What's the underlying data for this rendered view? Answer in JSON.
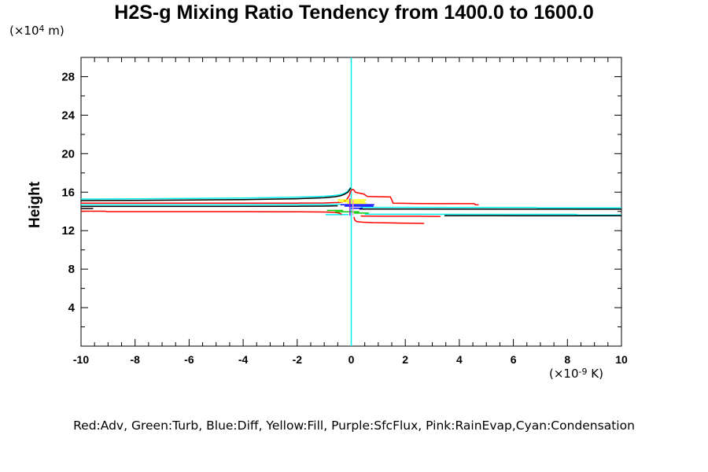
{
  "title": "H2S-g Mixing Ratio Tendency from 1400.0 to 1600.0",
  "y_axis_title": "Height",
  "y_unit": {
    "prefix": "(×10",
    "sup": "4",
    "suffix": " m)"
  },
  "x_unit": {
    "prefix": "(×10",
    "sup": "-9",
    "suffix": " K)"
  },
  "legend_caption": "Red:Adv, Green:Turb, Blue:Diff, Yellow:Fill, Purple:SfcFlux, Pink:RainEvap,Cyan:Condensation",
  "colors": {
    "adv": "#ff0000",
    "turb": "#00cc00",
    "diff": "#0000ff",
    "fill": "#ffff00",
    "sfcflux": "#a020f0",
    "rainevap": "#ff9ec8",
    "condensation": "#00eeee",
    "frame": "#000000"
  },
  "chart_data": {
    "type": "line",
    "title": "H2S-g Mixing Ratio Tendency from 1400.0 to 1600.0",
    "xlabel": "(x10^-9 K)",
    "ylabel": "Height (x10^4 m)",
    "xlim": [
      -10,
      10
    ],
    "ylim": [
      0,
      30
    ],
    "grid": false,
    "x_major_ticks": [
      -10,
      -8,
      -6,
      -4,
      -2,
      0,
      2,
      4,
      6,
      8,
      10
    ],
    "x_minor_step": 0.5,
    "y_major_ticks": [
      4,
      8,
      12,
      16,
      20,
      24,
      28
    ],
    "y_minor_step": 2,
    "legend_position": "bottom-caption",
    "series": [
      {
        "name": "condensation-zero-vertical",
        "color": "#00eeee",
        "points": [
          [
            0,
            0
          ],
          [
            0,
            30
          ]
        ]
      },
      {
        "name": "condensation-upper",
        "color": "#00eeee",
        "points": [
          [
            -10,
            15.28
          ],
          [
            -8,
            15.3
          ],
          [
            -6,
            15.34
          ],
          [
            -4,
            15.39
          ],
          [
            -3,
            15.43
          ],
          [
            -2,
            15.48
          ],
          [
            -1.5,
            15.52
          ],
          [
            -1,
            15.57
          ],
          [
            -0.7,
            15.63
          ],
          [
            -0.45,
            15.72
          ],
          [
            -0.28,
            15.85
          ],
          [
            -0.15,
            16.05
          ],
          [
            -0.07,
            16.3
          ],
          [
            -0.03,
            16.5
          ]
        ]
      },
      {
        "name": "condensation-mid-left",
        "color": "#00eeee",
        "points": [
          [
            -10,
            14.68
          ],
          [
            -5,
            14.68
          ],
          [
            -2,
            14.69
          ],
          [
            -1,
            14.71
          ],
          [
            -0.6,
            14.73
          ],
          [
            -0.4,
            14.76
          ]
        ]
      },
      {
        "name": "condensation-right-mid",
        "color": "#00eeee",
        "points": [
          [
            0.35,
            14.42
          ],
          [
            2,
            14.42
          ],
          [
            4.5,
            14.41
          ],
          [
            6.8,
            14.41
          ],
          [
            6.9,
            14.36
          ],
          [
            10,
            14.36
          ]
        ]
      },
      {
        "name": "condensation-knot-low-left",
        "color": "#00eeee",
        "points": [
          [
            -0.95,
            13.66
          ],
          [
            -0.4,
            13.66
          ],
          [
            -0.1,
            13.67
          ]
        ]
      },
      {
        "name": "condensation-right-low",
        "color": "#00eeee",
        "points": [
          [
            0.5,
            13.7
          ],
          [
            2,
            13.7
          ],
          [
            5,
            13.69
          ],
          [
            8.3,
            13.69
          ],
          [
            8.4,
            13.63
          ],
          [
            10,
            13.63
          ]
        ]
      },
      {
        "name": "diff-black-upper",
        "color": "#000000",
        "points": [
          [
            -10,
            15.12
          ],
          [
            -8,
            15.15
          ],
          [
            -6,
            15.18
          ],
          [
            -4,
            15.23
          ],
          [
            -2,
            15.32
          ],
          [
            -1,
            15.42
          ],
          [
            -0.6,
            15.52
          ],
          [
            -0.4,
            15.62
          ],
          [
            -0.25,
            15.78
          ],
          [
            -0.12,
            16.0
          ],
          [
            -0.05,
            16.3
          ],
          [
            -0.02,
            16.45
          ]
        ]
      },
      {
        "name": "black-mid-left",
        "color": "#000000",
        "points": [
          [
            -10,
            14.52
          ],
          [
            -5,
            14.52
          ],
          [
            -2,
            14.53
          ],
          [
            -1,
            14.55
          ],
          [
            -0.5,
            14.58
          ]
        ]
      },
      {
        "name": "black-left-edge-short",
        "color": "#000000",
        "points": [
          [
            -10,
            14.3
          ],
          [
            -9.55,
            14.3
          ]
        ]
      },
      {
        "name": "black-right-mid",
        "color": "#000000",
        "points": [
          [
            0.3,
            14.25
          ],
          [
            2,
            14.24
          ],
          [
            6,
            14.23
          ],
          [
            10,
            14.23
          ]
        ]
      },
      {
        "name": "black-right-low",
        "color": "#000000",
        "points": [
          [
            3.45,
            13.56
          ],
          [
            6,
            13.55
          ],
          [
            10,
            13.55
          ]
        ]
      },
      {
        "name": "adv-red-upper-spike",
        "color": "#ff0000",
        "points": [
          [
            -10,
            14.85
          ],
          [
            -5,
            14.85
          ],
          [
            -2,
            14.86
          ],
          [
            -1,
            14.88
          ],
          [
            -0.5,
            14.93
          ],
          [
            -0.3,
            15.0
          ],
          [
            -0.18,
            15.2
          ],
          [
            -0.08,
            15.6
          ],
          [
            -0.02,
            16.1
          ],
          [
            0.03,
            16.28
          ],
          [
            0.09,
            16.25
          ],
          [
            0.15,
            16.0
          ],
          [
            0.3,
            15.9
          ],
          [
            0.45,
            15.82
          ],
          [
            0.6,
            15.55
          ],
          [
            1.45,
            15.5
          ],
          [
            1.5,
            15.2
          ],
          [
            1.55,
            14.85
          ],
          [
            2.5,
            14.82
          ],
          [
            3.5,
            14.8
          ],
          [
            4.55,
            14.8
          ],
          [
            4.6,
            14.7
          ],
          [
            4.72,
            14.68
          ]
        ]
      },
      {
        "name": "adv-red-left-low",
        "color": "#ff0000",
        "points": [
          [
            -10,
            14.02
          ],
          [
            -9.1,
            14.02
          ],
          [
            -9.05,
            13.98
          ],
          [
            -5,
            13.98
          ],
          [
            -2,
            13.96
          ],
          [
            -1,
            13.94
          ],
          [
            -0.6,
            13.9
          ],
          [
            -0.45,
            13.82
          ],
          [
            -0.35,
            13.7
          ]
        ]
      },
      {
        "name": "adv-red-right-low",
        "color": "#ff0000",
        "points": [
          [
            0.35,
            13.52
          ],
          [
            1.2,
            13.5
          ],
          [
            2.4,
            13.5
          ],
          [
            3.3,
            13.48
          ]
        ]
      },
      {
        "name": "adv-red-dip",
        "color": "#ff0000",
        "points": [
          [
            0.1,
            13.42
          ],
          [
            0.13,
            13.1
          ],
          [
            0.2,
            12.95
          ],
          [
            0.4,
            12.88
          ],
          [
            0.8,
            12.83
          ],
          [
            1.5,
            12.8
          ],
          [
            2.2,
            12.77
          ],
          [
            2.7,
            12.75
          ]
        ]
      },
      {
        "name": "fill-yellow-1",
        "color": "#ffff00",
        "points": [
          [
            -0.5,
            15.2
          ],
          [
            0.55,
            15.2
          ]
        ]
      },
      {
        "name": "fill-yellow-2",
        "color": "#ffff00",
        "points": [
          [
            -0.45,
            15.02
          ],
          [
            0.5,
            15.02
          ]
        ]
      },
      {
        "name": "fill-yellow-3",
        "color": "#ffff00",
        "points": [
          [
            -0.15,
            14.87
          ],
          [
            0.55,
            14.87
          ]
        ]
      },
      {
        "name": "diff-blue-1",
        "color": "#0000ff",
        "points": [
          [
            -0.4,
            14.7
          ],
          [
            0.85,
            14.7
          ]
        ]
      },
      {
        "name": "diff-blue-2",
        "color": "#0000ff",
        "points": [
          [
            -0.25,
            14.55
          ],
          [
            0.8,
            14.55
          ],
          [
            0.82,
            14.5
          ]
        ]
      },
      {
        "name": "diff-blue-3",
        "color": "#0000ff",
        "points": [
          [
            0.0,
            14.33
          ],
          [
            0.42,
            14.33
          ]
        ]
      },
      {
        "name": "turb-green-1",
        "color": "#00cc00",
        "points": [
          [
            -0.9,
            14.1
          ],
          [
            -0.3,
            14.1
          ]
        ]
      },
      {
        "name": "turb-green-2",
        "color": "#00cc00",
        "points": [
          [
            -0.6,
            13.95
          ],
          [
            0.3,
            13.95
          ]
        ]
      },
      {
        "name": "turb-green-3",
        "color": "#00cc00",
        "points": [
          [
            0.1,
            13.82
          ],
          [
            0.65,
            13.82
          ]
        ]
      },
      {
        "name": "sfcflux-purple-vertical",
        "color": "#a020f0",
        "points": [
          [
            -0.05,
            13.55
          ],
          [
            -0.05,
            15.35
          ]
        ]
      },
      {
        "name": "rainevap-pink-vertical",
        "color": "#ff9ec8",
        "points": [
          [
            0.06,
            13.6
          ],
          [
            0.06,
            15.2
          ]
        ]
      }
    ]
  }
}
